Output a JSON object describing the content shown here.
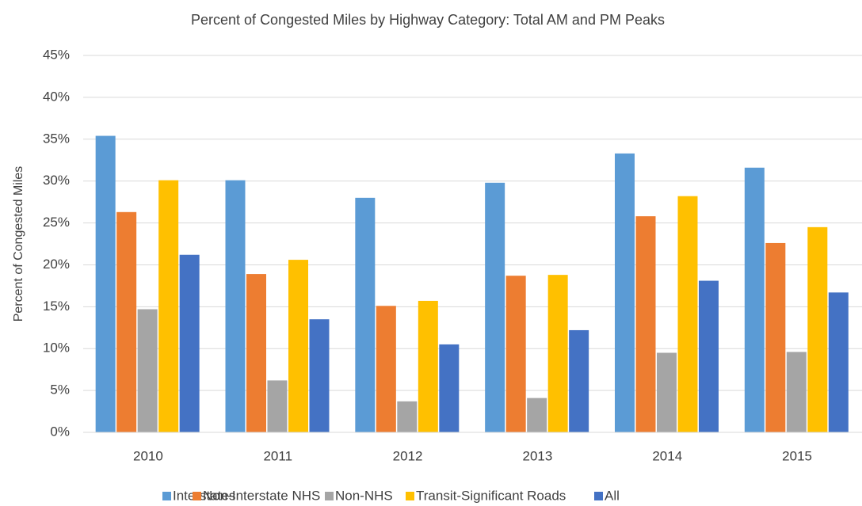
{
  "chart_data": {
    "type": "bar",
    "title": "Percent of Congested Miles by Highway Category: Total AM and PM Peaks",
    "y_label": "Percent of Congested Miles",
    "categories": [
      "2010",
      "2011",
      "2012",
      "2013",
      "2014",
      "2015"
    ],
    "series": [
      {
        "name": "Interstates",
        "color": "#5b9bd5",
        "values": [
          35.4,
          30.1,
          28.0,
          29.8,
          33.3,
          31.6
        ]
      },
      {
        "name": "Non-Interstate NHS",
        "color": "#ed7d31",
        "values": [
          26.3,
          18.9,
          15.1,
          18.7,
          25.8,
          22.6
        ]
      },
      {
        "name": "Non-NHS",
        "color": "#a5a5a5",
        "values": [
          14.7,
          6.2,
          3.7,
          4.1,
          9.5,
          9.6
        ]
      },
      {
        "name": "Transit-Significant Roads",
        "color": "#ffc000",
        "values": [
          30.1,
          20.6,
          15.7,
          18.8,
          28.2,
          24.5
        ]
      },
      {
        "name": "All",
        "color": "#4472c4",
        "values": [
          21.2,
          13.5,
          10.5,
          12.2,
          18.1,
          16.7
        ]
      }
    ],
    "ylim": [
      0,
      45
    ],
    "yticks": [
      {
        "value": 0,
        "label": "0%"
      },
      {
        "value": 5,
        "label": "5%"
      },
      {
        "value": 10,
        "label": "10%"
      },
      {
        "value": 15,
        "label": "15%"
      },
      {
        "value": 20,
        "label": "20%"
      },
      {
        "value": 25,
        "label": "25%"
      },
      {
        "value": 30,
        "label": "30%"
      },
      {
        "value": 35,
        "label": "35%"
      },
      {
        "value": 40,
        "label": "40%"
      },
      {
        "value": 45,
        "label": "45%"
      }
    ],
    "grid": true,
    "legend": "bottom"
  }
}
